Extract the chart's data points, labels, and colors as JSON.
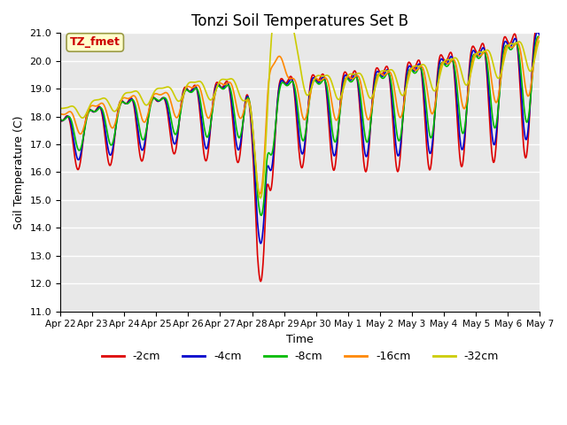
{
  "title": "Tonzi Soil Temperatures Set B",
  "xlabel": "Time",
  "ylabel": "Soil Temperature (C)",
  "annotation": "TZ_fmet",
  "annotation_color": "#cc0000",
  "annotation_bg": "#ffffcc",
  "ylim": [
    11.0,
    21.0
  ],
  "yticks": [
    11.0,
    12.0,
    13.0,
    14.0,
    15.0,
    16.0,
    17.0,
    18.0,
    19.0,
    20.0,
    21.0
  ],
  "series_colors": [
    "#dd0000",
    "#0000cc",
    "#00bb00",
    "#ff8800",
    "#cccc00"
  ],
  "series_labels": [
    "-2cm",
    "-4cm",
    "-8cm",
    "-16cm",
    "-32cm"
  ],
  "xtick_labels": [
    "Apr 22",
    "Apr 23",
    "Apr 24",
    "Apr 25",
    "Apr 26",
    "Apr 27",
    "Apr 28",
    "Apr 29",
    "Apr 30",
    "May 1",
    "May 2",
    "May 3",
    "May 4",
    "May 5",
    "May 6",
    "May 7"
  ],
  "bg_color": "#e8e8e8",
  "grid_color": "#ffffff",
  "fig_bg": "#ffffff"
}
